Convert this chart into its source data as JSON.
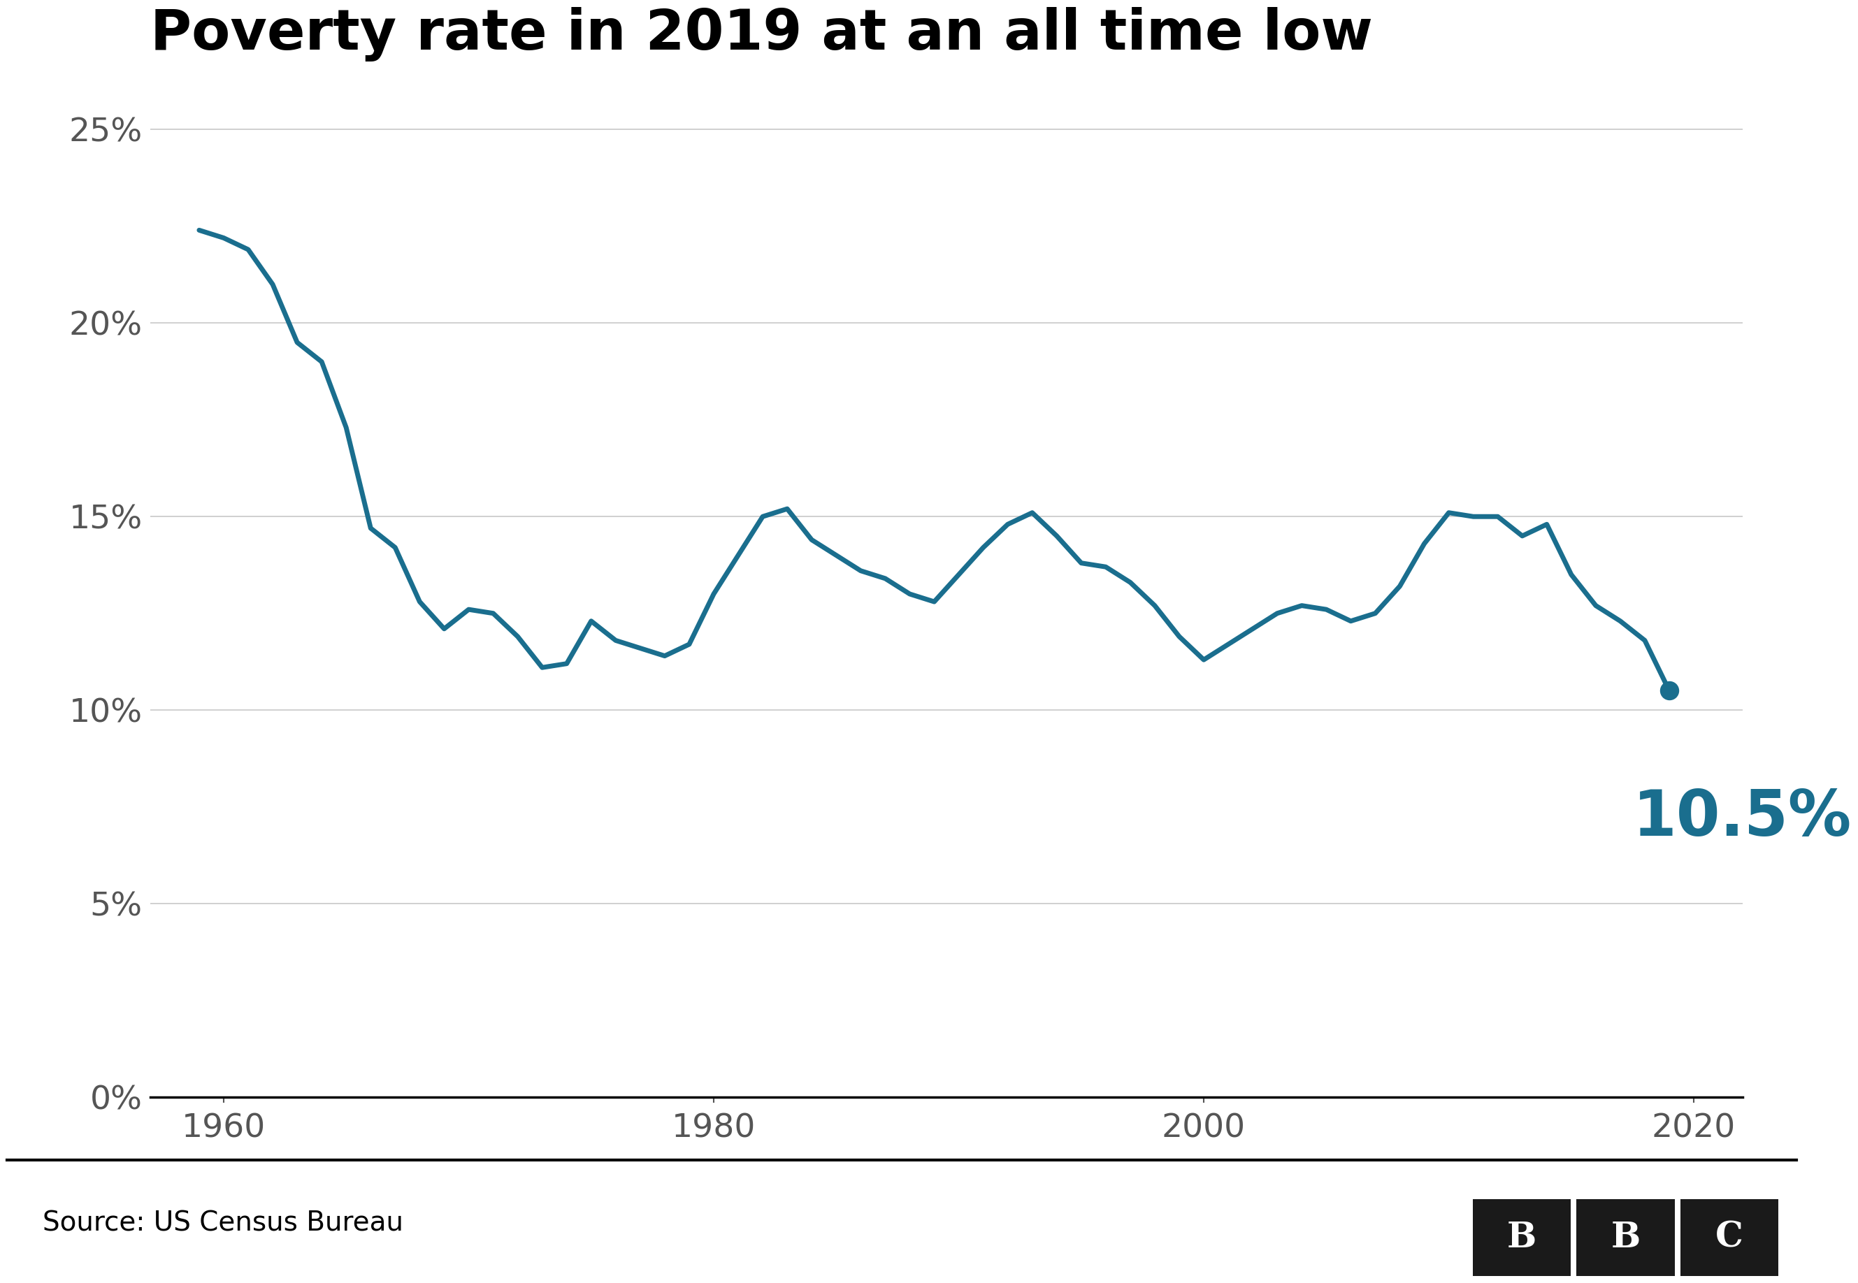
{
  "title": "Poverty rate in 2019 at an all time low",
  "source": "Source: US Census Bureau",
  "line_color": "#1a6e8e",
  "background_color": "#ffffff",
  "title_fontsize": 58,
  "annotation_value": "10.5%",
  "annotation_color": "#1a6e8e",
  "annotation_fontsize": 65,
  "years": [
    1959,
    1960,
    1961,
    1962,
    1963,
    1964,
    1965,
    1966,
    1967,
    1968,
    1969,
    1970,
    1971,
    1972,
    1973,
    1974,
    1975,
    1976,
    1977,
    1978,
    1979,
    1980,
    1981,
    1982,
    1983,
    1984,
    1985,
    1986,
    1987,
    1988,
    1989,
    1990,
    1991,
    1992,
    1993,
    1994,
    1995,
    1996,
    1997,
    1998,
    1999,
    2000,
    2001,
    2002,
    2003,
    2004,
    2005,
    2006,
    2007,
    2008,
    2009,
    2010,
    2011,
    2012,
    2013,
    2014,
    2015,
    2016,
    2017,
    2018,
    2019
  ],
  "values": [
    22.4,
    22.2,
    21.9,
    21.0,
    19.5,
    19.0,
    17.3,
    14.7,
    14.2,
    12.8,
    12.1,
    12.6,
    12.5,
    11.9,
    11.1,
    11.2,
    12.3,
    11.8,
    11.6,
    11.4,
    11.7,
    13.0,
    14.0,
    15.0,
    15.2,
    14.4,
    14.0,
    13.6,
    13.4,
    13.0,
    12.8,
    13.5,
    14.2,
    14.8,
    15.1,
    14.5,
    13.8,
    13.7,
    13.3,
    12.7,
    11.9,
    11.3,
    11.7,
    12.1,
    12.5,
    12.7,
    12.6,
    12.3,
    12.5,
    13.2,
    14.3,
    15.1,
    15.0,
    15.0,
    14.5,
    14.8,
    13.5,
    12.7,
    12.3,
    11.8,
    10.5
  ],
  "ylim": [
    0,
    26
  ],
  "yticks": [
    0,
    5,
    10,
    15,
    20,
    25
  ],
  "xlim": [
    1957,
    2022
  ],
  "xticks": [
    1960,
    1980,
    2000,
    2020
  ],
  "grid_color": "#c8c8c8",
  "line_width": 5,
  "dot_size": 350,
  "tick_fontsize": 34,
  "source_fontsize": 28,
  "bbc_fontsize": 36
}
